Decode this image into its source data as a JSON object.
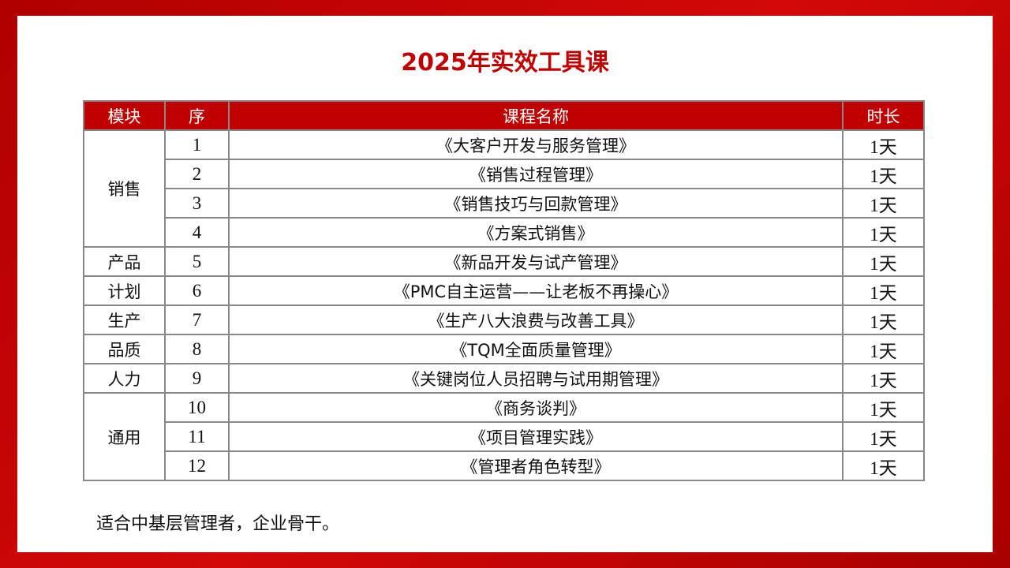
{
  "title": "2025年实效工具课",
  "table": {
    "headers": [
      "模块",
      "序",
      "课程名称",
      "时长"
    ],
    "rows": [
      {
        "module": "销售",
        "span": 4,
        "no": "1",
        "course": "《大客户开发与服务管理》",
        "duration": "1天"
      },
      {
        "no": "2",
        "course": "《销售过程管理》",
        "duration": "1天"
      },
      {
        "no": "3",
        "course": "《销售技巧与回款管理》",
        "duration": "1天"
      },
      {
        "no": "4",
        "course": "《方案式销售》",
        "duration": "1天"
      },
      {
        "module": "产品",
        "span": 1,
        "no": "5",
        "course": "《新品开发与试产管理》",
        "duration": "1天"
      },
      {
        "module": "计划",
        "span": 1,
        "no": "6",
        "course": "《PMC自主运营——让老板不再操心》",
        "duration": "1天"
      },
      {
        "module": "生产",
        "span": 1,
        "no": "7",
        "course": "《生产八大浪费与改善工具》",
        "duration": "1天"
      },
      {
        "module": "品质",
        "span": 1,
        "no": "8",
        "course": "《TQM全面质量管理》",
        "duration": "1天"
      },
      {
        "module": "人力",
        "span": 1,
        "no": "9",
        "course": "《关键岗位人员招聘与试用期管理》",
        "duration": "1天"
      },
      {
        "module": "通用",
        "span": 3,
        "no": "10",
        "course": "《商务谈判》",
        "duration": "1天"
      },
      {
        "no": "11",
        "course": "《项目管理实践》",
        "duration": "1天"
      },
      {
        "no": "12",
        "course": "《管理者角色转型》",
        "duration": "1天"
      }
    ]
  },
  "note": "适合中基层管理者，企业骨干。",
  "colors": {
    "accent": "#c00000",
    "border": "#888888"
  }
}
